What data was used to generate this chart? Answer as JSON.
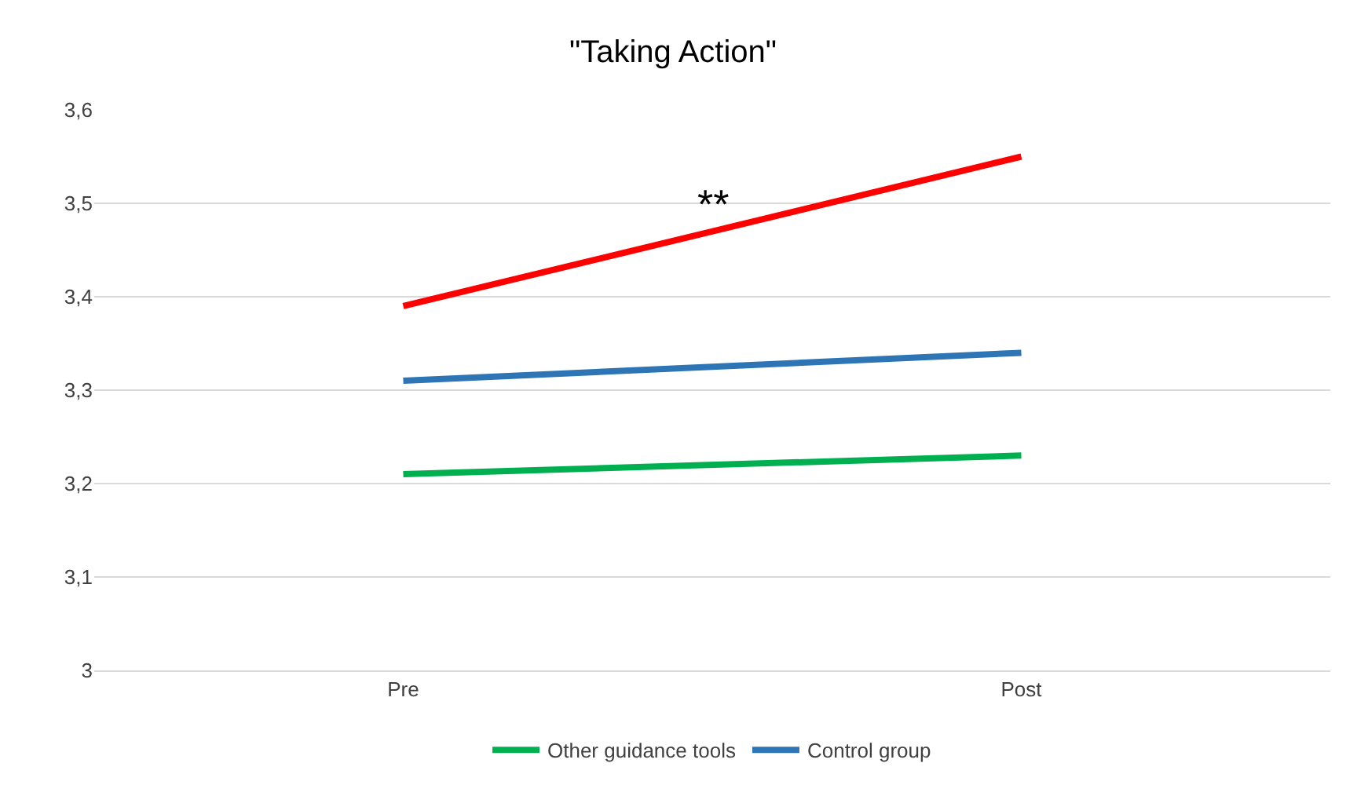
{
  "chart_data": {
    "type": "line",
    "title": "\"Taking Action\"",
    "categories": [
      "Pre",
      "Post"
    ],
    "series": [
      {
        "color": "#ff0000",
        "values": [
          3.39,
          3.55
        ]
      },
      {
        "name": "Other guidance tools",
        "color": "#00b050",
        "values": [
          3.21,
          3.23
        ]
      },
      {
        "name": "Control group",
        "color": "#2e75b6",
        "values": [
          3.31,
          3.34
        ]
      }
    ],
    "ylim": [
      3,
      3.6
    ],
    "yticks": [
      3,
      {
        "value": 3.1,
        "label": "3,1"
      },
      {
        "value": 3.2,
        "label": "3,2"
      },
      {
        "value": 3.3,
        "label": "3,3"
      },
      {
        "value": 3.4,
        "label": "3,4"
      },
      {
        "value": 3.5,
        "label": "3,5"
      },
      {
        "value": 3.6,
        "label": "3,6"
      }
    ],
    "grid": "y",
    "legend": "bottom",
    "marker": "none",
    "line_style": "solid",
    "annotations": [
      "**"
    ]
  }
}
